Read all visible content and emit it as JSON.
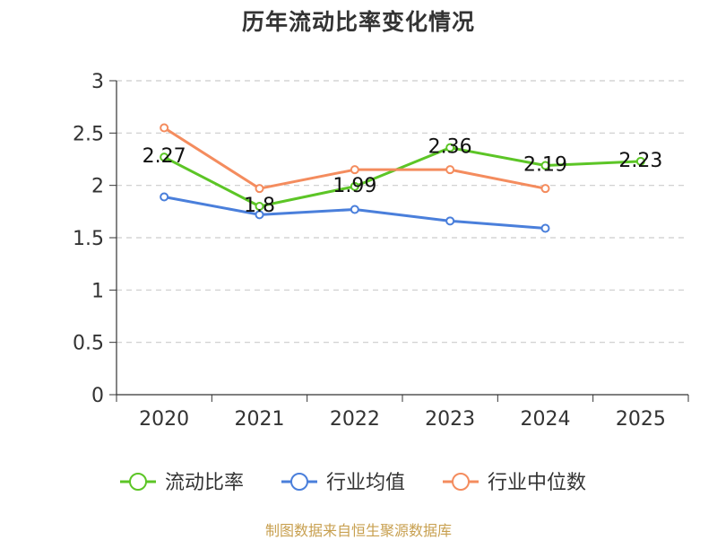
{
  "chart_data": {
    "type": "line",
    "title": "历年流动比率变化情况",
    "xlabel": "",
    "ylabel": "",
    "categories": [
      "2020",
      "2021",
      "2022",
      "2023",
      "2024",
      "2025"
    ],
    "ylim": [
      0,
      3
    ],
    "yticks": [
      "0",
      "0.5",
      "1",
      "1.5",
      "2",
      "2.5",
      "3"
    ],
    "grid": true,
    "legend_position": "bottom",
    "series": [
      {
        "name": "流动比率",
        "color": "#5cc526",
        "values": [
          2.27,
          1.8,
          1.99,
          2.36,
          2.19,
          2.23
        ],
        "labels": [
          "2.27",
          "1.8",
          "1.99",
          "2.36",
          "2.19",
          "2.23"
        ]
      },
      {
        "name": "行业均值",
        "color": "#4a7fdb",
        "values": [
          1.89,
          1.72,
          1.77,
          1.66,
          1.59,
          null
        ]
      },
      {
        "name": "行业中位数",
        "color": "#f48c5e",
        "values": [
          2.55,
          1.97,
          2.15,
          2.15,
          1.97,
          null
        ]
      }
    ]
  },
  "source_note": "制图数据来自恒生聚源数据库"
}
